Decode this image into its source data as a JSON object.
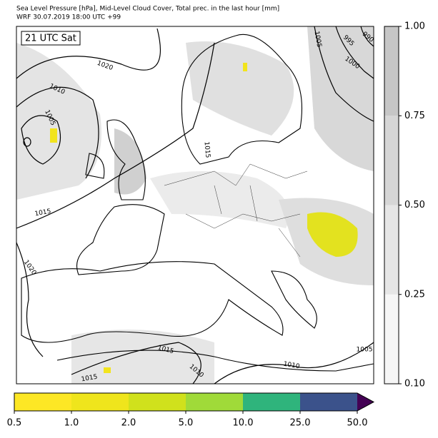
{
  "header": {
    "title": "Sea Level Pressure [hPa], Mid-Level Cloud Cover, Total prec. in the last hour [mm]",
    "subtitle": "WRF 30.07.2019 18:00 UTC +99"
  },
  "map": {
    "time_label": "21 UTC Sat",
    "contour_labels": [
      "1020",
      "1010",
      "1005",
      "1015",
      "1020",
      "1015",
      "1010",
      "1010",
      "1005",
      "1015",
      "1015",
      "1005",
      "995",
      "1000",
      "990"
    ]
  },
  "colorbar_right": {
    "ticks": [
      "0.10",
      "0.25",
      "0.50",
      "0.75",
      "1.00"
    ],
    "colors": [
      "#f6f6f6",
      "#e6e6e6",
      "#d6d6d6",
      "#c6c6c6"
    ]
  },
  "colorbar_bottom": {
    "ticks": [
      "0.5",
      "1.0",
      "2.0",
      "5.0",
      "10.0",
      "25.0",
      "50.0"
    ],
    "colors": [
      "#fde725",
      "#efe51c",
      "#d0e11c",
      "#a0da39",
      "#2fb47c",
      "#3b528b"
    ],
    "extend_color": "#440154"
  }
}
